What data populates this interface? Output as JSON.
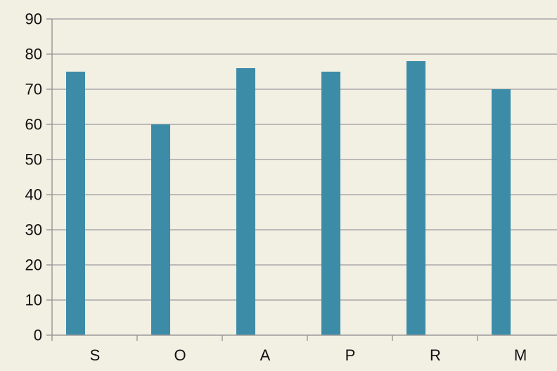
{
  "colors": {
    "background": "#f2efe3",
    "bar": "#3c8ca8",
    "gridline": "#a9a9a9",
    "axis": "#9a9a9a"
  },
  "chart_data": {
    "type": "bar",
    "title": "",
    "xlabel": "",
    "ylabel": "",
    "categories": [
      "S",
      "O",
      "A",
      "P",
      "R",
      "M"
    ],
    "values": [
      75,
      60,
      76,
      75,
      78,
      70
    ],
    "ylim": [
      0,
      90
    ],
    "yticks": [
      "0",
      "10",
      "20",
      "30",
      "40",
      "50",
      "60",
      "70",
      "80",
      "90"
    ],
    "grid": true,
    "legend": "none"
  }
}
